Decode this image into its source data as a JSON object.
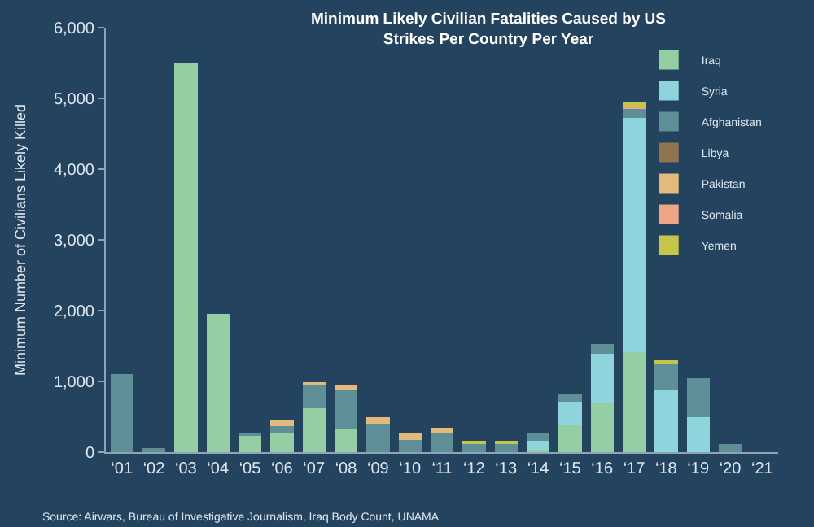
{
  "chart_data": {
    "type": "bar",
    "stacked": true,
    "title": "Minimum Likely Civilian Fatalities Caused by US\nStrikes Per Country Per Year",
    "ylabel": "Minimum Number of Civilians Likely Killed",
    "categories": [
      "‘01",
      "‘02",
      "‘03",
      "‘04",
      "‘05",
      "‘06",
      "‘07",
      "‘08",
      "‘09",
      "‘10",
      "‘11",
      "‘12",
      "‘13",
      "‘14",
      "‘15",
      "‘16",
      "‘17",
      "‘18",
      "‘19",
      "‘20",
      "‘21"
    ],
    "series": [
      {
        "name": "Iraq",
        "color": "#93cfa3",
        "values": [
          0,
          0,
          5500,
          1950,
          230,
          260,
          620,
          330,
          0,
          0,
          0,
          0,
          0,
          40,
          390,
          700,
          1410,
          0,
          0,
          0,
          0
        ]
      },
      {
        "name": "Syria",
        "color": "#8ed4dc",
        "values": [
          0,
          0,
          0,
          0,
          0,
          0,
          0,
          0,
          0,
          0,
          0,
          0,
          0,
          120,
          320,
          690,
          3310,
          880,
          500,
          0,
          0
        ]
      },
      {
        "name": "Afghanistan",
        "color": "#5f8f96",
        "values": [
          1100,
          60,
          0,
          0,
          30,
          110,
          330,
          550,
          400,
          170,
          270,
          130,
          120,
          110,
          110,
          140,
          140,
          380,
          550,
          110,
          0
        ]
      },
      {
        "name": "Libya",
        "color": "#8f7450",
        "values": [
          0,
          0,
          0,
          0,
          0,
          0,
          0,
          0,
          0,
          0,
          0,
          0,
          0,
          0,
          0,
          0,
          0,
          0,
          0,
          0,
          0
        ]
      },
      {
        "name": "Pakistan",
        "color": "#e3b97c",
        "values": [
          0,
          0,
          0,
          0,
          0,
          90,
          20,
          60,
          90,
          90,
          80,
          0,
          0,
          0,
          0,
          0,
          0,
          0,
          0,
          0,
          0
        ]
      },
      {
        "name": "Somalia",
        "color": "#eea585",
        "values": [
          0,
          0,
          0,
          0,
          0,
          0,
          0,
          0,
          0,
          0,
          0,
          0,
          0,
          0,
          0,
          0,
          30,
          0,
          0,
          0,
          0
        ]
      },
      {
        "name": "Yemen",
        "color": "#c5c54a",
        "values": [
          0,
          0,
          0,
          0,
          0,
          0,
          0,
          0,
          0,
          0,
          0,
          30,
          20,
          0,
          0,
          0,
          60,
          40,
          0,
          0,
          0
        ]
      }
    ],
    "ylim": [
      0,
      6000
    ],
    "yticks": [
      {
        "value": 0,
        "label": "0"
      },
      {
        "value": 1000,
        "label": "1,000"
      },
      {
        "value": 2000,
        "label": "2,000"
      },
      {
        "value": 3000,
        "label": "3,000"
      },
      {
        "value": 4000,
        "label": "4,000"
      },
      {
        "value": 5000,
        "label": "5,000"
      },
      {
        "value": 6000,
        "label": "6,000"
      }
    ],
    "legend": "top right",
    "grid": false,
    "annotations": [
      "Source: Airwars, Bureau of Investigative Journalism, Iraq Body Count, UNAMA"
    ]
  }
}
